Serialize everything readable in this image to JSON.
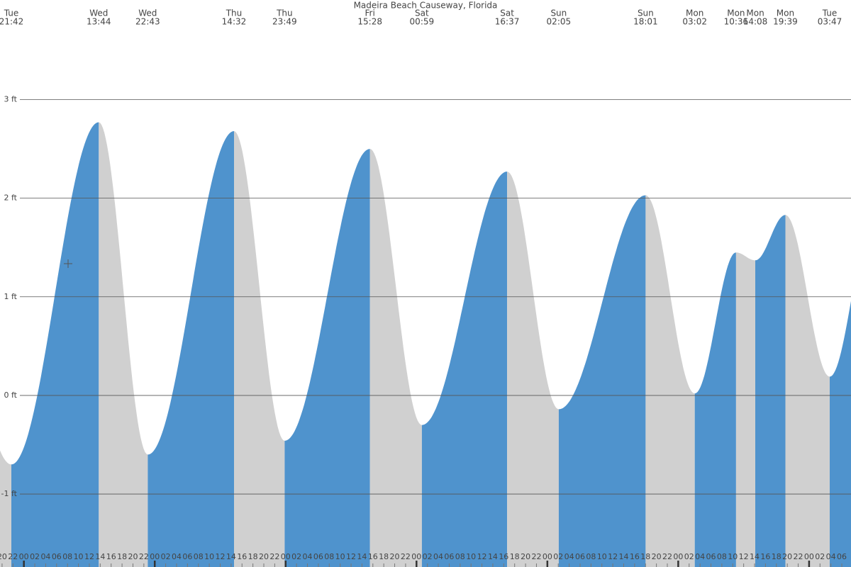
{
  "chart_data": {
    "type": "area",
    "title": "Madeira Beach Causeway, Florida",
    "rising_color": "#4f93cd",
    "falling_color": "#d0d0d0",
    "grid": true,
    "ylim": [
      -1.74,
      4.01
    ],
    "yticks": [
      {
        "value": -1,
        "label": "-1 ft"
      },
      {
        "value": 0,
        "label": "0 ft"
      },
      {
        "value": 1,
        "label": "1 ft"
      },
      {
        "value": 2,
        "label": "2 ft"
      },
      {
        "value": 3,
        "label": "3 ft"
      }
    ],
    "extremes": [
      {
        "day": "Tue",
        "time": "21:42",
        "height": -0.7
      },
      {
        "day": "Wed",
        "time": "13:44",
        "height": 2.77
      },
      {
        "day": "Wed",
        "time": "22:43",
        "height": -0.6
      },
      {
        "day": "Thu",
        "time": "14:32",
        "height": 2.68
      },
      {
        "day": "Thu",
        "time": "23:49",
        "height": -0.46
      },
      {
        "day": "Fri",
        "time": "15:28",
        "height": 2.5
      },
      {
        "day": "Sat",
        "time": "00:59",
        "height": -0.3
      },
      {
        "day": "Sat",
        "time": "16:37",
        "height": 2.27
      },
      {
        "day": "Sun",
        "time": "02:05",
        "height": -0.14
      },
      {
        "day": "Sun",
        "time": "18:01",
        "height": 2.03
      },
      {
        "day": "Mon",
        "time": "03:02",
        "height": 0.02
      },
      {
        "day": "Mon",
        "time": "10:36",
        "height": 1.45
      },
      {
        "day": "Mon",
        "time": "14:08",
        "height": 1.37
      },
      {
        "day": "Mon",
        "time": "19:39",
        "height": 1.83
      },
      {
        "day": "Tue",
        "time": "03:47",
        "height": 0.19
      }
    ],
    "hour_ticks": [
      "20",
      "22",
      "00",
      "02",
      "04",
      "06",
      "08",
      "10",
      "12",
      "14",
      "16",
      "18",
      "20",
      "22",
      "00",
      "02",
      "04",
      "06",
      "08",
      "10",
      "12",
      "14",
      "16",
      "18",
      "20",
      "22",
      "00",
      "02",
      "04",
      "06",
      "08",
      "10",
      "12",
      "14",
      "16",
      "18",
      "20",
      "22",
      "00",
      "02",
      "04",
      "06",
      "08",
      "10",
      "12",
      "14",
      "16",
      "18",
      "20",
      "22",
      "00",
      "02",
      "04",
      "06",
      "08",
      "10",
      "12",
      "14",
      "16",
      "18",
      "20",
      "22",
      "00",
      "02",
      "04",
      "06",
      "08",
      "10",
      "12",
      "14",
      "16",
      "18",
      "20",
      "22",
      "00",
      "02",
      "04",
      "06"
    ]
  }
}
